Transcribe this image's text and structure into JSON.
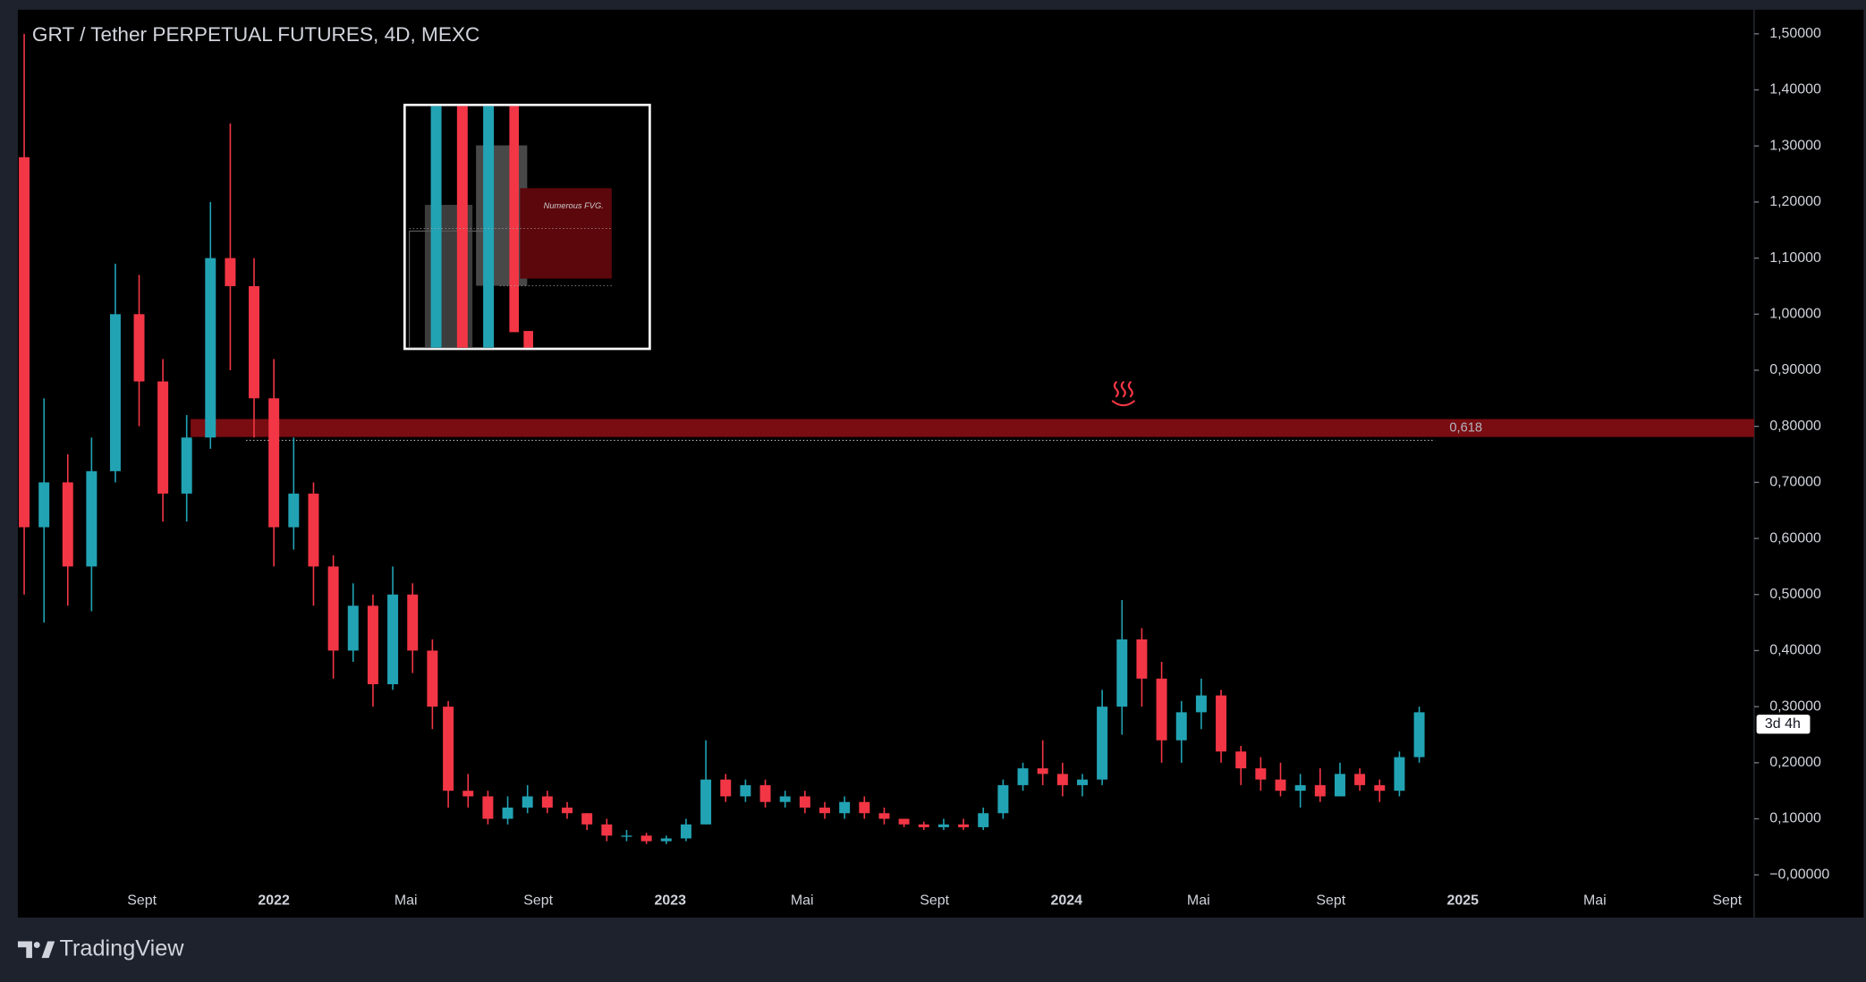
{
  "chart_data": {
    "type": "candlestick",
    "title": "GRT / Tether PERPETUAL FUTURES, 4D, MEXC",
    "up_color": "#22a3b4",
    "down_color": "#f23645",
    "x": [
      2021.37,
      2021.42,
      2021.48,
      2021.54,
      2021.6,
      2021.66,
      2021.72,
      2021.78,
      2021.84,
      2021.89,
      2021.95,
      2022.0,
      2022.05,
      2022.1,
      2022.15,
      2022.2,
      2022.25,
      2022.3,
      2022.35,
      2022.4,
      2022.44,
      2022.49,
      2022.54,
      2022.59,
      2022.64,
      2022.69,
      2022.74,
      2022.79,
      2022.84,
      2022.89,
      2022.94,
      2022.99,
      2023.04,
      2023.09,
      2023.14,
      2023.19,
      2023.24,
      2023.29,
      2023.34,
      2023.39,
      2023.44,
      2023.49,
      2023.54,
      2023.59,
      2023.64,
      2023.69,
      2023.74,
      2023.79,
      2023.84,
      2023.89,
      2023.94,
      2023.99,
      2024.04,
      2024.09,
      2024.14,
      2024.19,
      2024.24,
      2024.29,
      2024.34,
      2024.39,
      2024.44,
      2024.49,
      2024.54,
      2024.59,
      2024.64,
      2024.69,
      2024.74,
      2024.79,
      2024.84,
      2024.89
    ],
    "open": [
      1.28,
      0.62,
      0.7,
      0.55,
      0.72,
      1.0,
      0.88,
      0.68,
      0.78,
      1.1,
      1.05,
      0.85,
      0.62,
      0.68,
      0.55,
      0.4,
      0.48,
      0.34,
      0.5,
      0.4,
      0.3,
      0.15,
      0.14,
      0.1,
      0.12,
      0.14,
      0.12,
      0.11,
      0.09,
      0.07,
      0.07,
      0.06,
      0.065,
      0.09,
      0.17,
      0.14,
      0.16,
      0.13,
      0.14,
      0.12,
      0.11,
      0.13,
      0.11,
      0.1,
      0.09,
      0.085,
      0.09,
      0.085,
      0.11,
      0.16,
      0.19,
      0.18,
      0.16,
      0.17,
      0.3,
      0.42,
      0.35,
      0.24,
      0.29,
      0.32,
      0.22,
      0.19,
      0.17,
      0.15,
      0.16,
      0.14,
      0.18,
      0.16,
      0.15,
      0.21
    ],
    "high": [
      1.5,
      0.85,
      0.75,
      0.78,
      1.09,
      1.07,
      0.92,
      0.82,
      1.2,
      1.34,
      1.1,
      0.92,
      0.78,
      0.7,
      0.57,
      0.52,
      0.5,
      0.55,
      0.52,
      0.42,
      0.31,
      0.18,
      0.15,
      0.14,
      0.16,
      0.15,
      0.13,
      0.11,
      0.1,
      0.08,
      0.075,
      0.07,
      0.1,
      0.24,
      0.18,
      0.17,
      0.17,
      0.15,
      0.15,
      0.13,
      0.14,
      0.14,
      0.12,
      0.1,
      0.095,
      0.1,
      0.1,
      0.12,
      0.17,
      0.2,
      0.24,
      0.2,
      0.18,
      0.33,
      0.49,
      0.44,
      0.38,
      0.31,
      0.35,
      0.33,
      0.23,
      0.21,
      0.2,
      0.18,
      0.19,
      0.2,
      0.19,
      0.17,
      0.22,
      0.3
    ],
    "low": [
      0.5,
      0.45,
      0.48,
      0.47,
      0.7,
      0.8,
      0.63,
      0.63,
      0.76,
      0.9,
      0.78,
      0.55,
      0.58,
      0.48,
      0.35,
      0.38,
      0.3,
      0.33,
      0.36,
      0.26,
      0.12,
      0.12,
      0.09,
      0.09,
      0.11,
      0.11,
      0.1,
      0.08,
      0.06,
      0.06,
      0.055,
      0.055,
      0.06,
      0.09,
      0.13,
      0.13,
      0.12,
      0.12,
      0.11,
      0.1,
      0.1,
      0.1,
      0.09,
      0.085,
      0.08,
      0.08,
      0.08,
      0.08,
      0.1,
      0.15,
      0.16,
      0.14,
      0.14,
      0.16,
      0.25,
      0.3,
      0.2,
      0.2,
      0.26,
      0.2,
      0.16,
      0.15,
      0.14,
      0.12,
      0.13,
      0.14,
      0.15,
      0.13,
      0.14,
      0.2
    ],
    "close": [
      0.62,
      0.7,
      0.55,
      0.72,
      1.0,
      0.88,
      0.68,
      0.78,
      1.1,
      1.05,
      0.85,
      0.62,
      0.68,
      0.55,
      0.4,
      0.48,
      0.34,
      0.5,
      0.4,
      0.3,
      0.15,
      0.14,
      0.1,
      0.12,
      0.14,
      0.12,
      0.11,
      0.09,
      0.07,
      0.07,
      0.06,
      0.065,
      0.09,
      0.17,
      0.14,
      0.16,
      0.13,
      0.14,
      0.12,
      0.11,
      0.13,
      0.11,
      0.1,
      0.09,
      0.085,
      0.09,
      0.085,
      0.11,
      0.16,
      0.19,
      0.18,
      0.16,
      0.17,
      0.3,
      0.42,
      0.35,
      0.24,
      0.29,
      0.32,
      0.22,
      0.19,
      0.17,
      0.15,
      0.16,
      0.14,
      0.18,
      0.16,
      0.15,
      0.21,
      0.29
    ],
    "xlim": [
      2021.354,
      2025.735
    ],
    "xticks": [
      {
        "value": 2021.667,
        "label": "Sept"
      },
      2022,
      {
        "value": 2022.333,
        "label": "Mai"
      },
      {
        "value": 2022.667,
        "label": "Sept"
      },
      2023,
      {
        "value": 2023.333,
        "label": "Mai"
      },
      {
        "value": 2023.667,
        "label": "Sept"
      },
      2024,
      {
        "value": 2024.333,
        "label": "Mai"
      },
      {
        "value": 2024.667,
        "label": "Sept"
      },
      2025,
      {
        "value": 2025.333,
        "label": "Mai"
      },
      {
        "value": 2025.667,
        "label": "Sept"
      }
    ],
    "ylim": [
      -0.074,
      1.543
    ],
    "yticks": [
      {
        "value": 0,
        "label": "−0,00000"
      },
      {
        "value": 0.1,
        "label": "0,10000"
      },
      {
        "value": 0.2,
        "label": "0,20000"
      },
      {
        "value": 0.3,
        "label": "0,30000"
      },
      {
        "value": 0.4,
        "label": "0,40000"
      },
      {
        "value": 0.5,
        "label": "0,50000"
      },
      {
        "value": 0.6,
        "label": "0,60000"
      },
      {
        "value": 0.7,
        "label": "0,70000"
      },
      {
        "value": 0.8,
        "label": "0,80000"
      },
      {
        "value": 0.9,
        "label": "0,90000"
      },
      {
        "value": 1.0,
        "label": "1,00000"
      },
      {
        "value": 1.1,
        "label": "1,10000"
      },
      {
        "value": 1.2,
        "label": "1,20000"
      },
      {
        "value": 1.3,
        "label": "1,30000"
      },
      {
        "value": 1.4,
        "label": "1,40000"
      },
      {
        "value": 1.5,
        "label": "1,50000"
      }
    ],
    "grid": false,
    "zone": {
      "x_start": 2021.79,
      "low": 0.781,
      "high": 0.813,
      "label": "0,618",
      "color": "#7a0d12"
    },
    "dotted_level": {
      "value": 0.775,
      "x_start": 2021.93,
      "x_end": 2024.93
    },
    "countdown_label": "3d 4h",
    "inset_annotation": "Numerous FVG."
  },
  "branding": "TradingView"
}
